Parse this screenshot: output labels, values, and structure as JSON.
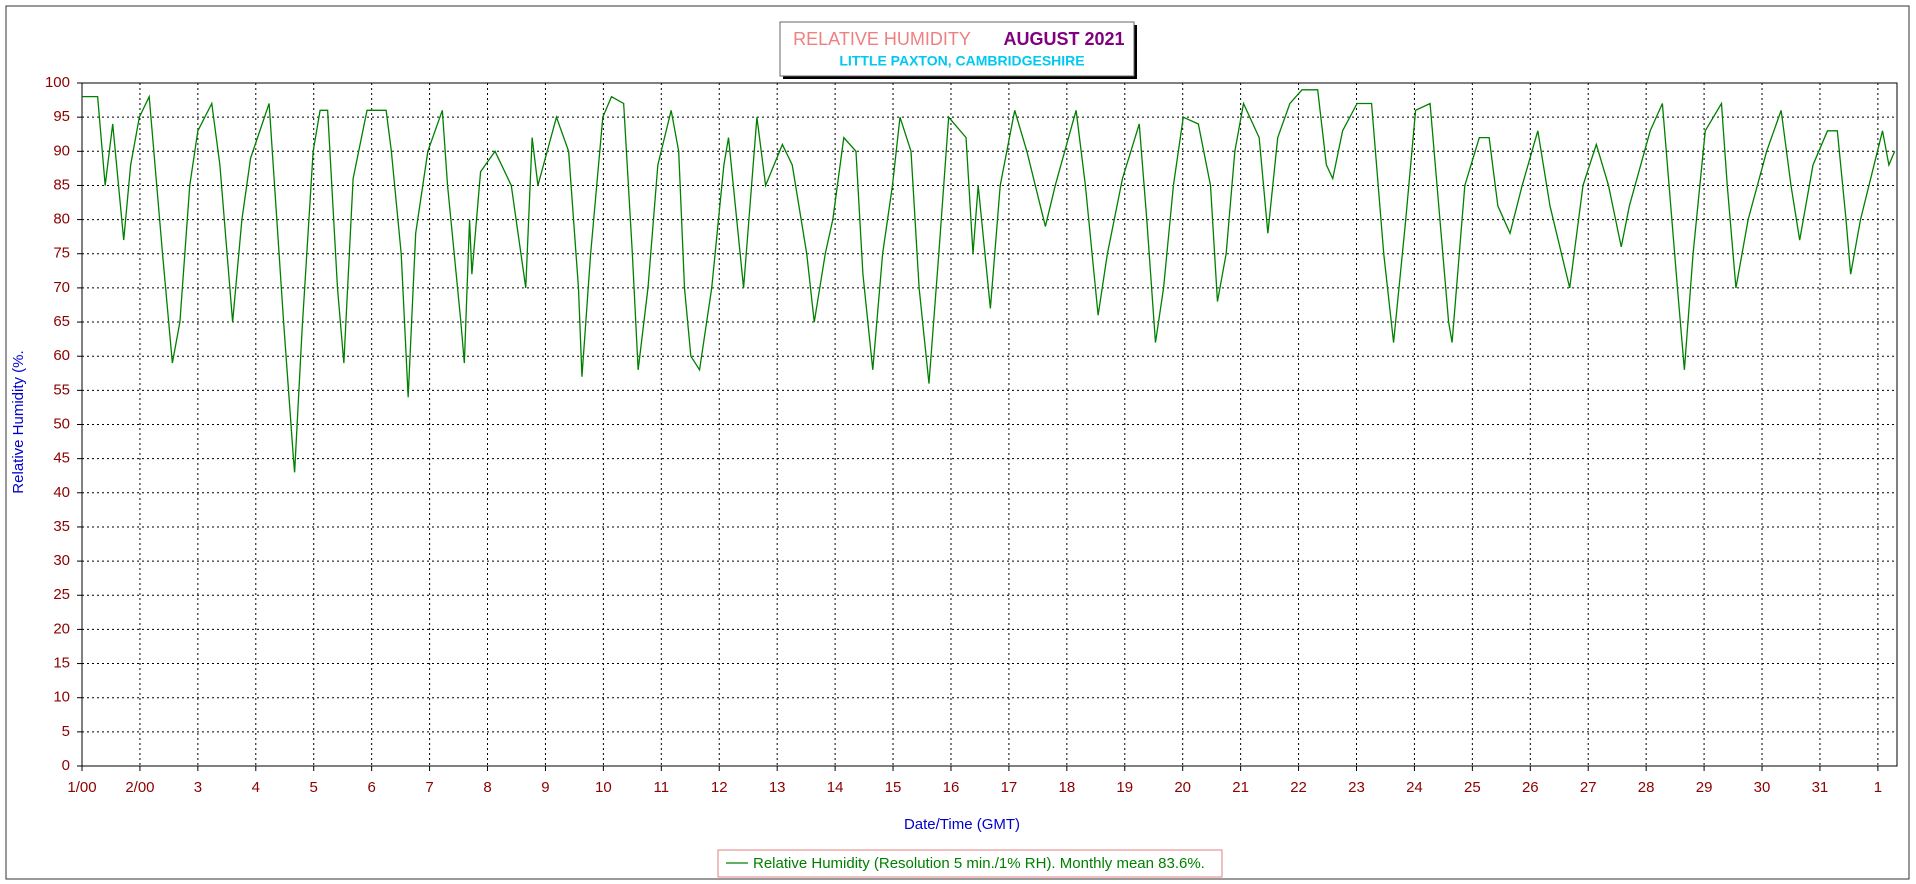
{
  "chart_data": {
    "type": "line",
    "title": "RELATIVE HUMIDITY",
    "title_date": "AUGUST 2021",
    "subtitle": "LITTLE PAXTON, CAMBRIDGESHIRE",
    "x_label": "Date/Time (GMT)",
    "y_label": "Relative Humidity (%.",
    "x": [
      0,
      0.27,
      0.4,
      0.53,
      0.72,
      0.84,
      0.99,
      1.16,
      1.39,
      1.56,
      1.69,
      1.86,
      2.0,
      2.24,
      2.38,
      2.6,
      2.76,
      2.91,
      3.23,
      3.48,
      3.65,
      3.67,
      3.8,
      3.99,
      4.11,
      4.24,
      4.41,
      4.52,
      4.68,
      4.92,
      5.25,
      5.34,
      5.51,
      5.63,
      5.76,
      5.97,
      6.22,
      6.31,
      6.54,
      6.6,
      6.69,
      6.73,
      6.88,
      7.13,
      7.41,
      7.66,
      7.77,
      7.87,
      8.19,
      8.4,
      8.57,
      8.63,
      8.78,
      8.99,
      9.14,
      9.35,
      9.5,
      9.6,
      9.77,
      9.94,
      10.17,
      10.3,
      10.4,
      10.51,
      10.66,
      10.87,
      11.08,
      11.16,
      11.42,
      11.65,
      11.8,
      12.09,
      12.26,
      12.51,
      12.64,
      12.83,
      12.96,
      13.15,
      13.36,
      13.48,
      13.65,
      13.82,
      13.99,
      14.12,
      14.31,
      14.45,
      14.62,
      14.79,
      14.96,
      15.26,
      15.38,
      15.47,
      15.68,
      15.85,
      16.1,
      16.31,
      16.63,
      16.8,
      17.16,
      17.32,
      17.54,
      17.7,
      17.96,
      18.25,
      18.38,
      18.53,
      18.67,
      18.84,
      19.01,
      19.27,
      19.48,
      19.6,
      19.75,
      19.9,
      20.05,
      20.32,
      20.47,
      20.64,
      20.85,
      21.06,
      21.33,
      21.48,
      21.59,
      21.76,
      22.01,
      22.26,
      22.47,
      22.64,
      22.85,
      23.02,
      23.27,
      23.59,
      23.65,
      23.87,
      24.12,
      24.29,
      24.44,
      24.65,
      24.86,
      25.13,
      25.34,
      25.68,
      25.91,
      26.14,
      26.35,
      26.57,
      26.71,
      27.07,
      27.28,
      27.54,
      27.66,
      27.81,
      28.02,
      28.3,
      28.4,
      28.55,
      28.76,
      29.08,
      29.33,
      29.5,
      29.65,
      29.88,
      30.13,
      30.3,
      30.45,
      30.53,
      30.7,
      31.08,
      31.19,
      31.29
    ],
    "series": [
      {
        "name": "Relative Humidity (Resolution 5 min./1% RH). Monthly mean 83.6%.",
        "color": "#008000",
        "values": [
          98,
          98,
          85,
          94,
          77,
          88,
          95,
          98,
          75,
          59,
          65,
          85,
          93,
          97,
          88,
          65,
          80,
          89,
          97,
          65,
          45,
          43,
          64,
          90,
          96,
          96,
          70,
          59,
          86,
          96,
          96,
          90,
          75,
          54,
          78,
          90,
          96,
          85,
          65,
          59,
          80,
          72,
          87,
          90,
          85,
          70,
          92,
          85,
          95,
          90,
          70,
          57,
          75,
          95,
          98,
          97,
          75,
          58,
          70,
          88,
          96,
          90,
          70,
          60,
          58,
          70,
          88,
          92,
          70,
          95,
          85,
          91,
          88,
          75,
          65,
          75,
          80,
          92,
          90,
          72,
          58,
          75,
          85,
          95,
          90,
          70,
          56,
          75,
          95,
          92,
          75,
          85,
          67,
          85,
          96,
          90,
          79,
          85,
          96,
          85,
          66,
          75,
          86,
          94,
          80,
          62,
          70,
          85,
          95,
          94,
          85,
          68,
          75,
          90,
          97,
          92,
          78,
          92,
          97,
          99,
          99,
          88,
          86,
          93,
          97,
          97,
          75,
          62,
          80,
          96,
          97,
          65,
          62,
          85,
          92,
          92,
          82,
          78,
          85,
          93,
          82,
          70,
          85,
          91,
          85,
          76,
          82,
          93,
          97,
          70,
          58,
          75,
          93,
          97,
          85,
          70,
          80,
          90,
          96,
          85,
          77,
          88,
          93,
          93,
          80,
          72,
          80,
          93,
          88,
          90
        ]
      }
    ],
    "xlim": [
      0,
      31.33
    ],
    "ylim": [
      0,
      100
    ],
    "xticks": [
      {
        "value": 0,
        "label": "1/00"
      },
      {
        "value": 1,
        "label": "2/00"
      },
      {
        "value": 2,
        "label": "3"
      },
      {
        "value": 3,
        "label": "4"
      },
      {
        "value": 4,
        "label": "5"
      },
      {
        "value": 5,
        "label": "6"
      },
      {
        "value": 6,
        "label": "7"
      },
      {
        "value": 7,
        "label": "8"
      },
      {
        "value": 8,
        "label": "9"
      },
      {
        "value": 9,
        "label": "10"
      },
      {
        "value": 10,
        "label": "11"
      },
      {
        "value": 11,
        "label": "12"
      },
      {
        "value": 12,
        "label": "13"
      },
      {
        "value": 13,
        "label": "14"
      },
      {
        "value": 14,
        "label": "15"
      },
      {
        "value": 15,
        "label": "16"
      },
      {
        "value": 16,
        "label": "17"
      },
      {
        "value": 17,
        "label": "18"
      },
      {
        "value": 18,
        "label": "19"
      },
      {
        "value": 19,
        "label": "20"
      },
      {
        "value": 20,
        "label": "21"
      },
      {
        "value": 21,
        "label": "22"
      },
      {
        "value": 22,
        "label": "23"
      },
      {
        "value": 23,
        "label": "24"
      },
      {
        "value": 24,
        "label": "25"
      },
      {
        "value": 25,
        "label": "26"
      },
      {
        "value": 26,
        "label": "27"
      },
      {
        "value": 27,
        "label": "28"
      },
      {
        "value": 28,
        "label": "29"
      },
      {
        "value": 29,
        "label": "30"
      },
      {
        "value": 30,
        "label": "31"
      },
      {
        "value": 31,
        "label": "1"
      }
    ],
    "yticks": [
      0,
      5,
      10,
      15,
      20,
      25,
      30,
      35,
      40,
      45,
      50,
      55,
      60,
      65,
      70,
      75,
      80,
      85,
      90,
      95,
      100
    ],
    "grid": true,
    "legend": "bottom"
  }
}
